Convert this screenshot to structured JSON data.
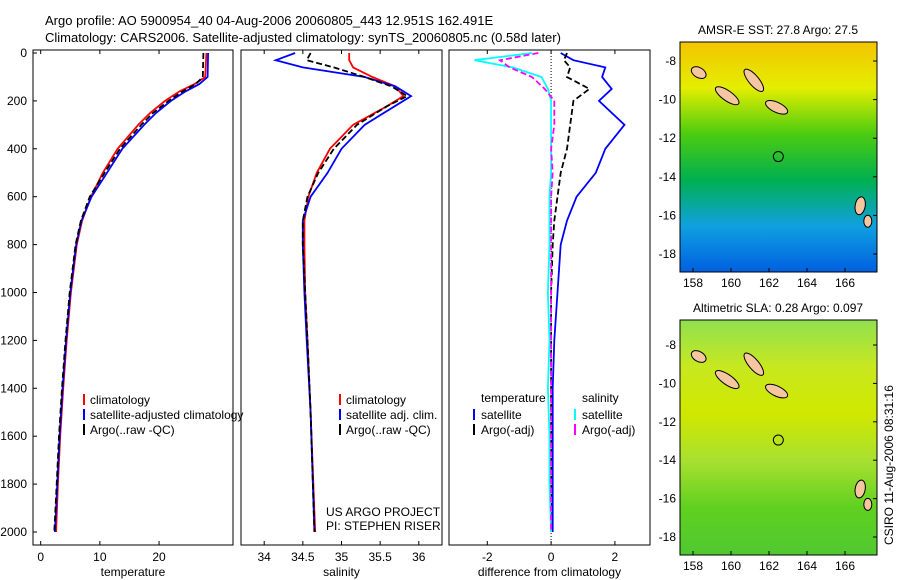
{
  "title_line1": "Argo profile: AO 5900954_40 04-Aug-2006 20060805_443 12.951S 162.491E",
  "title_line2": "Climatology: CARS2006. Satellite-adjusted climatology: synTS_20060805.nc (0.58d later)",
  "credit": "CSIRO 11-Aug-2006 08:31:16",
  "project": {
    "line1": "US ARGO PROJECT",
    "line2": "PI: STEPHEN RISER"
  },
  "chart_data": [
    {
      "type": "line",
      "xlabel": "temperature",
      "ylabel": "",
      "xlim": [
        -1.3,
        32.5
      ],
      "ylim": [
        2050,
        0
      ],
      "xticks": [
        "0",
        "10",
        "20"
      ],
      "yticks": [
        "0",
        "200",
        "400",
        "600",
        "800",
        "1000",
        "1200",
        "1400",
        "1600",
        "1800",
        "2000"
      ],
      "legend": [
        "climatology",
        "satellite-adjusted climatology",
        "Argo(..raw -QC)"
      ],
      "depth": [
        0,
        100,
        130,
        160,
        200,
        250,
        300,
        400,
        500,
        600,
        700,
        800,
        1000,
        1200,
        1400,
        1600,
        1800,
        2000
      ],
      "series": [
        {
          "name": "climatology",
          "color": "#ff0000",
          "values": [
            28,
            27.8,
            26,
            23.5,
            21,
            18.5,
            16.5,
            13,
            10.5,
            8.5,
            7,
            6.1,
            5.1,
            4.4,
            3.8,
            3.3,
            2.9,
            2.6
          ]
        },
        {
          "name": "satellite-adjusted climatology",
          "color": "#0000ff",
          "values": [
            28.3,
            28.2,
            26.8,
            24.5,
            22,
            19.5,
            17.5,
            13.8,
            11.2,
            8.6,
            6.9,
            6.0,
            5.0,
            4.3,
            3.7,
            3.2,
            2.8,
            2.4
          ]
        },
        {
          "name": "Argo(..raw -QC)",
          "color": "#000000",
          "values": [
            27.5,
            27.4,
            26.2,
            24,
            21.6,
            19,
            17,
            13.4,
            10.8,
            8.3,
            6.8,
            5.9,
            4.9,
            4.2,
            3.6,
            3.1,
            2.7,
            2.3
          ]
        }
      ]
    },
    {
      "type": "line",
      "xlabel": "salinity",
      "xlim": [
        33.7,
        36.3
      ],
      "ylim": [
        2050,
        0
      ],
      "xticks": [
        "34",
        "34.5",
        "35",
        "35.5",
        "36"
      ],
      "legend": [
        "climatology",
        "satellite adj. clim.",
        "Argo(..raw -QC)"
      ],
      "depth": [
        0,
        30,
        60,
        100,
        140,
        180,
        220,
        300,
        400,
        500,
        600,
        700,
        800,
        1000,
        1200,
        1500,
        2000
      ],
      "series": [
        {
          "name": "climatology",
          "color": "#ff0000",
          "values": [
            35.1,
            35.1,
            35.15,
            35.4,
            35.7,
            35.8,
            35.6,
            35.15,
            34.85,
            34.68,
            34.57,
            34.52,
            34.52,
            34.53,
            34.56,
            34.6,
            34.66
          ]
        },
        {
          "name": "satellite adj. clim.",
          "color": "#0000ff",
          "values": [
            34.4,
            34.15,
            34.5,
            35.3,
            35.7,
            35.9,
            35.7,
            35.3,
            35.0,
            34.82,
            34.6,
            34.5,
            34.5,
            34.52,
            34.55,
            34.6,
            34.65
          ]
        },
        {
          "name": "Argo(..raw -QC)",
          "color": "#000000",
          "values": [
            34.6,
            34.55,
            34.9,
            35.3,
            35.65,
            35.85,
            35.6,
            35.2,
            34.9,
            34.7,
            34.56,
            34.5,
            34.5,
            34.53,
            34.56,
            34.6,
            34.65
          ]
        }
      ]
    },
    {
      "type": "line",
      "xlabel": "difference from climatology",
      "xlim": [
        -3.2,
        3.1
      ],
      "ylim": [
        2050,
        0
      ],
      "xticks": [
        "-2",
        "0",
        "2"
      ],
      "legend_headers": [
        "temperature",
        "salinity"
      ],
      "legend": [
        "satellite",
        "Argo(-adj)",
        "satellite",
        "Argo(-adj)"
      ],
      "depth": [
        0,
        30,
        60,
        100,
        150,
        200,
        300,
        400,
        500,
        600,
        700,
        800,
        1000,
        1200,
        1400,
        1600,
        1800,
        2000
      ],
      "series": [
        {
          "name": "temperature satellite",
          "color": "#0000ff",
          "values": [
            0.3,
            0.7,
            1.7,
            1.6,
            1.9,
            1.5,
            2.3,
            1.7,
            1.4,
            0.8,
            0.5,
            0.3,
            0.2,
            0.1,
            0.05,
            0.05,
            0.05,
            0.05
          ]
        },
        {
          "name": "temperature Argo(-adj)",
          "color": "#000000",
          "values": [
            0.5,
            0.4,
            0.6,
            0.5,
            1.2,
            0.7,
            0.6,
            0.5,
            0.3,
            0.2,
            0.1,
            0.05,
            0,
            0,
            0,
            0,
            0,
            0
          ]
        },
        {
          "name": "salinity satellite",
          "color": "#00ffff",
          "values": [
            -0.6,
            -2.4,
            -1.2,
            -0.3,
            -0.1,
            0,
            0,
            0,
            0,
            -0.05,
            -0.05,
            -0.05,
            -0.1,
            -0.05,
            -0.1,
            -0.05,
            -0.05,
            0
          ]
        },
        {
          "name": "salinity Argo(-adj)",
          "color": "#ff00ff",
          "values": [
            -0.4,
            -1.6,
            -1.3,
            -0.6,
            -0.2,
            0.1,
            0.1,
            0.0,
            0.05,
            0,
            0,
            0,
            0,
            0,
            0,
            0,
            0,
            0
          ]
        }
      ]
    },
    {
      "type": "heatmap",
      "title": "AMSR-E SST: 27.8 Argo: 27.5",
      "xticks": [
        "158",
        "160",
        "162",
        "164",
        "166"
      ],
      "yticks": [
        "-8",
        "-10",
        "-12",
        "-14",
        "-16",
        "-18"
      ],
      "argo_position": [
        162.491,
        -12.951
      ]
    },
    {
      "type": "heatmap",
      "title": "Altimetric SLA: 0.28 Argo: 0.097",
      "xticks": [
        "158",
        "160",
        "162",
        "164",
        "166"
      ],
      "yticks": [
        "-8",
        "-10",
        "-12",
        "-14",
        "-16",
        "-18"
      ],
      "argo_position": [
        162.491,
        -12.951
      ]
    }
  ]
}
